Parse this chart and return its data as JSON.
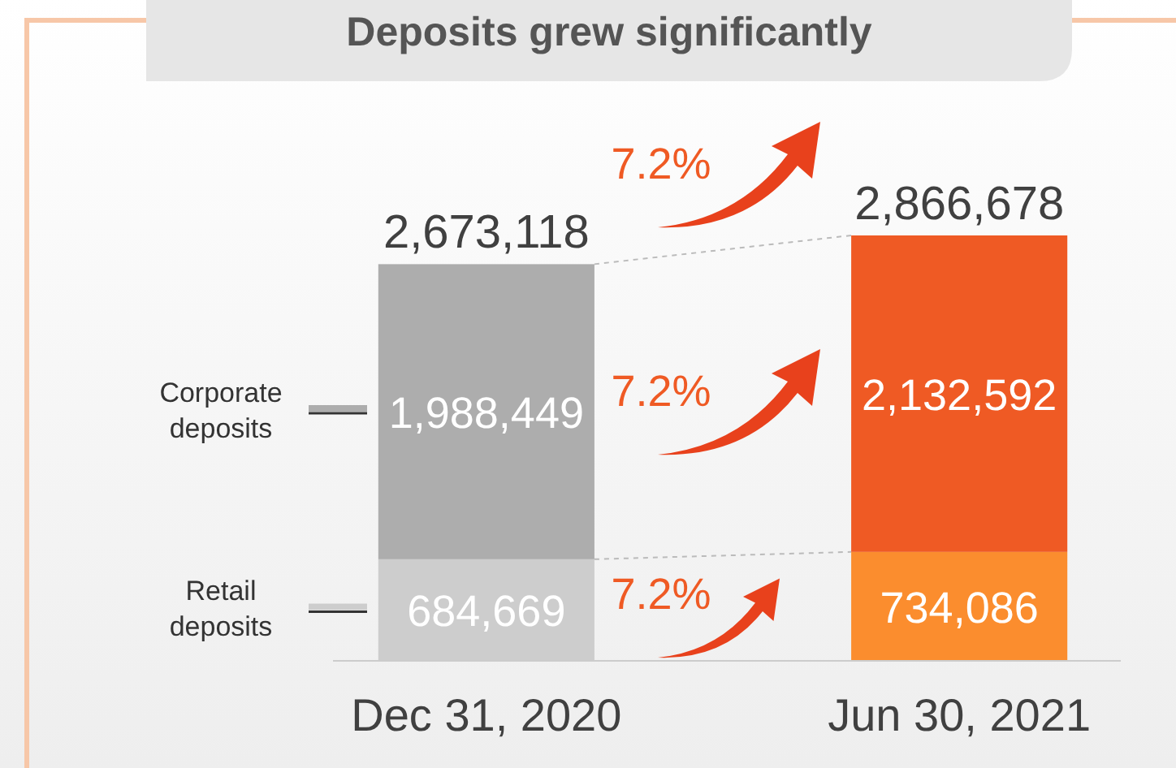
{
  "chart_data": {
    "type": "bar",
    "title": "Deposits grew significantly",
    "stacked": true,
    "legend": "left",
    "categories": [
      "Dec 31, 2020",
      "Jun 30, 2021"
    ],
    "series": [
      {
        "name": "Retail deposits",
        "colors": [
          "#cdcdcd",
          "#fb8d2e"
        ],
        "values": [
          684669,
          734086
        ],
        "value_labels": [
          "684,669",
          "734,086"
        ]
      },
      {
        "name": "Corporate deposits",
        "colors": [
          "#adadad",
          "#ef5a24"
        ],
        "values": [
          1988449,
          2132592
        ],
        "value_labels": [
          "1,988,449",
          "2,132,592"
        ]
      }
    ],
    "totals": [
      "2,673,118",
      "2,866,678"
    ],
    "annotations": [
      "7.2%",
      "7.2%",
      "7.2%"
    ]
  }
}
